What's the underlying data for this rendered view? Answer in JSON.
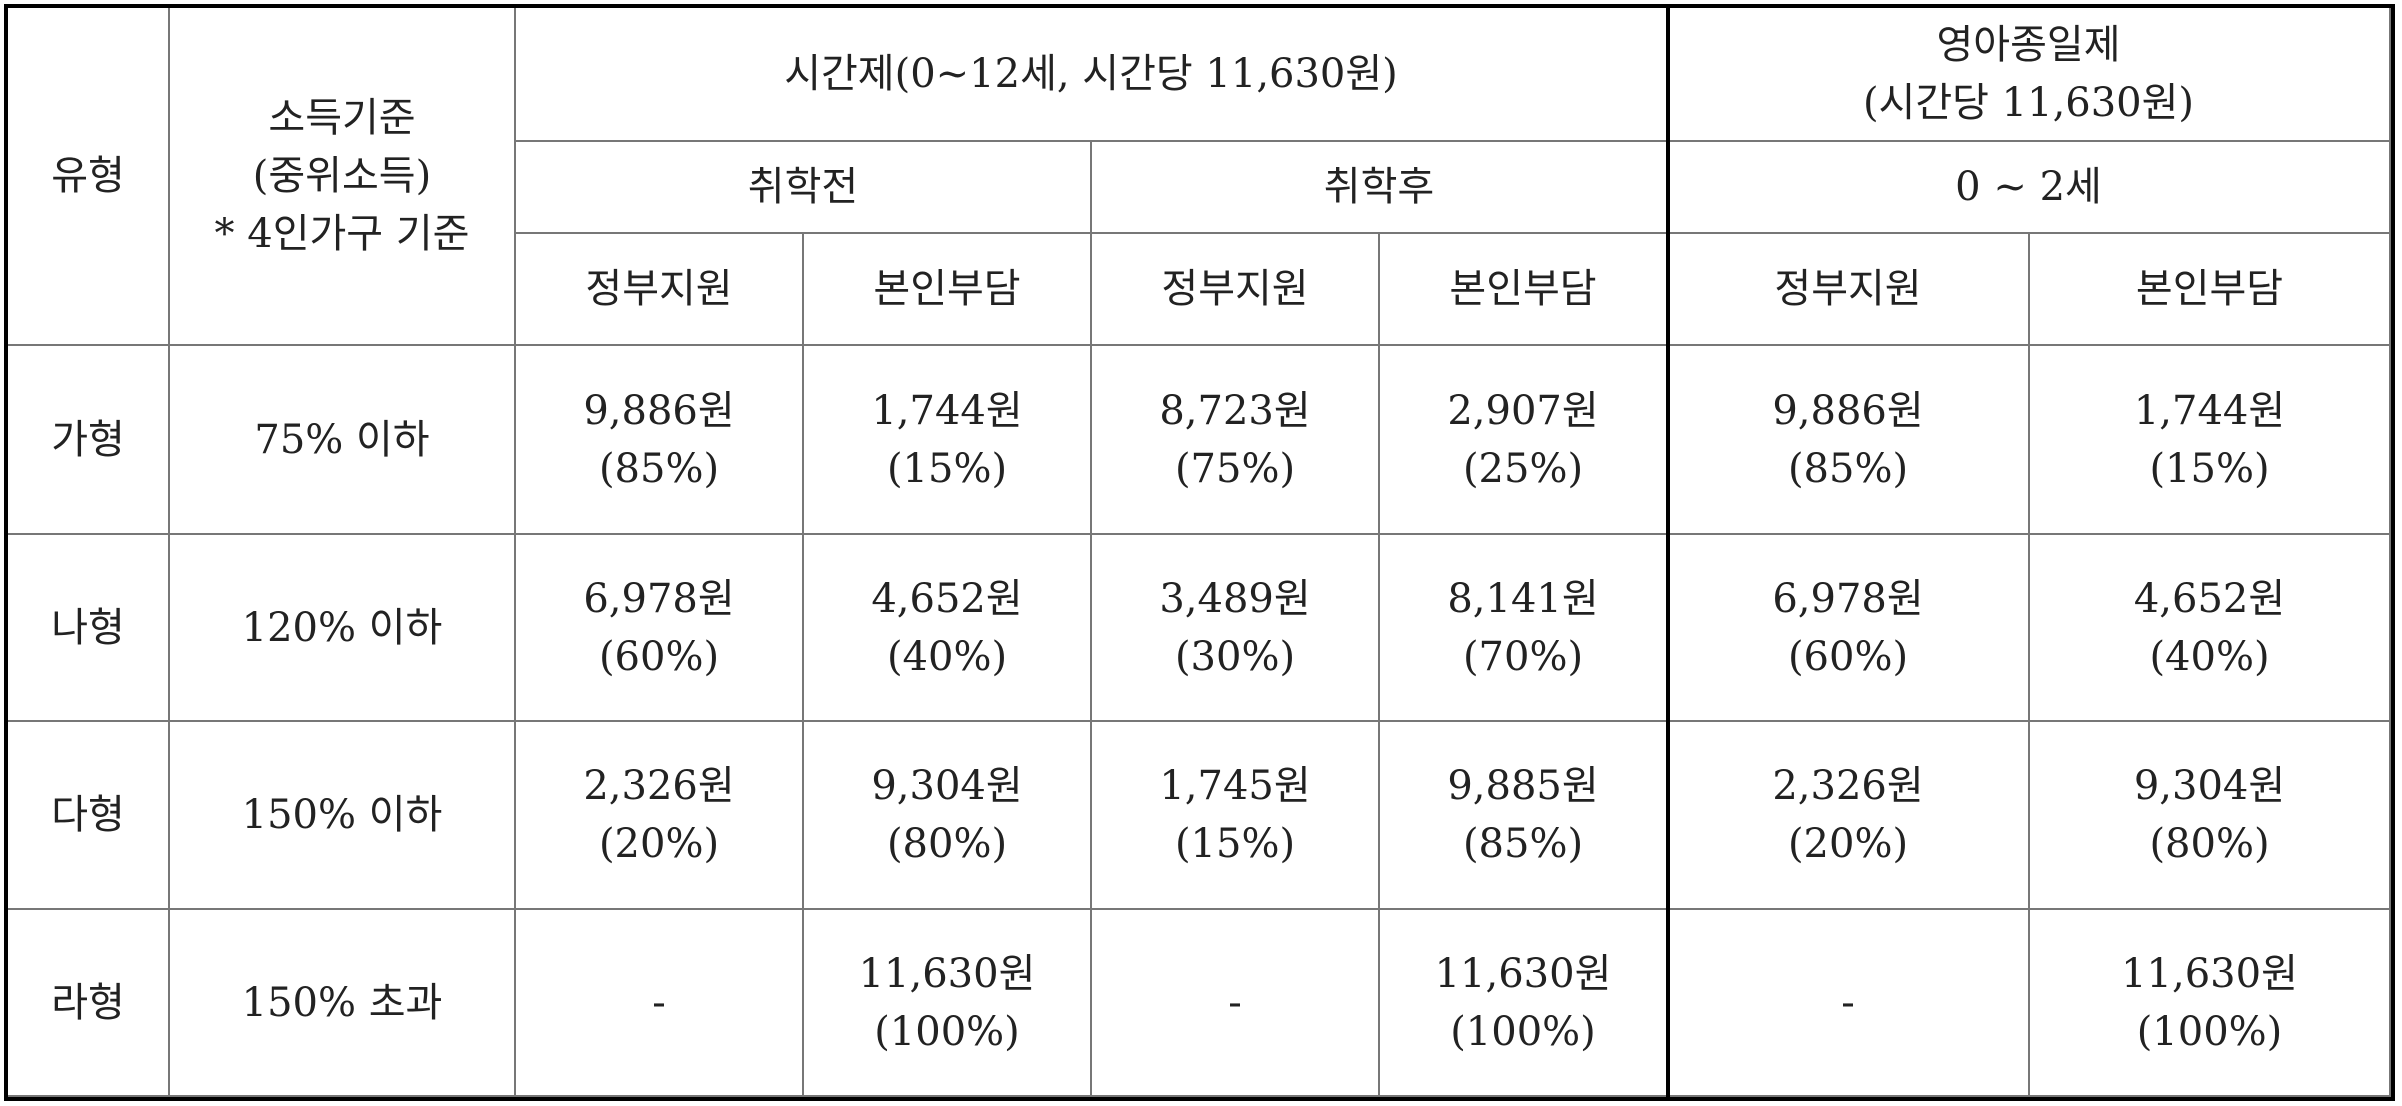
{
  "header": {
    "type_label": "유형",
    "income_label": [
      "소득기준",
      "(중위소득)",
      "* 4인가구 기준"
    ],
    "hourly": {
      "title": "시간제(0~12세, 시간당 11,630원)",
      "before_school": "취학전",
      "after_school": "취학후"
    },
    "infant": {
      "title": [
        "영아종일제",
        "(시간당 11,630원)"
      ],
      "age": "0 ~ 2세"
    },
    "sub_columns": [
      "정부지원",
      "본인부담",
      "정부지원",
      "본인부담",
      "정부지원",
      "본인부담"
    ]
  },
  "rows": [
    {
      "type": "가형",
      "income": "75% 이하",
      "cells": [
        [
          "9,886원",
          "(85%)"
        ],
        [
          "1,744원",
          "(15%)"
        ],
        [
          "8,723원",
          "(75%)"
        ],
        [
          "2,907원",
          "(25%)"
        ],
        [
          "9,886원",
          "(85%)"
        ],
        [
          "1,744원",
          "(15%)"
        ]
      ]
    },
    {
      "type": "나형",
      "income": "120% 이하",
      "cells": [
        [
          "6,978원",
          "(60%)"
        ],
        [
          "4,652원",
          "(40%)"
        ],
        [
          "3,489원",
          "(30%)"
        ],
        [
          "8,141원",
          "(70%)"
        ],
        [
          "6,978원",
          "(60%)"
        ],
        [
          "4,652원",
          "(40%)"
        ]
      ]
    },
    {
      "type": "다형",
      "income": "150% 이하",
      "cells": [
        [
          "2,326원",
          "(20%)"
        ],
        [
          "9,304원",
          "(80%)"
        ],
        [
          "1,745원",
          "(15%)"
        ],
        [
          "9,885원",
          "(85%)"
        ],
        [
          "2,326원",
          "(20%)"
        ],
        [
          "9,304원",
          "(80%)"
        ]
      ]
    },
    {
      "type": "라형",
      "income": "150% 초과",
      "cells": [
        [
          "-"
        ],
        [
          "11,630원",
          "(100%)"
        ],
        [
          "-"
        ],
        [
          "11,630원",
          "(100%)"
        ],
        [
          "-"
        ],
        [
          "11,630원",
          "(100%)"
        ]
      ]
    }
  ]
}
